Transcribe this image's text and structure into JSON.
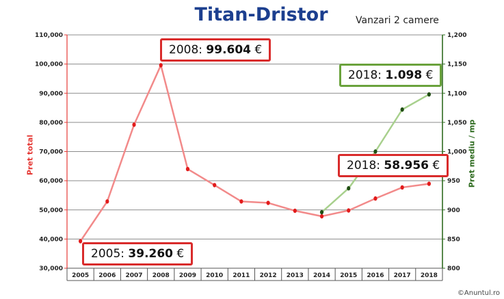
{
  "page": {
    "title": "Titan-Dristor",
    "subtitle": "Vanzari 2 camere",
    "copyright": "©Anuntul.ro"
  },
  "colors": {
    "title": "#1c3f8f",
    "total_line": "#f28a8a",
    "total_marker": "#e21b1b",
    "mp_line": "#a8d08d",
    "mp_marker": "#1f4d12",
    "left_axis": "#e53935",
    "right_axis": "#2e6b1f",
    "grid": "#8c8c8c"
  },
  "callouts": [
    {
      "id": "callout-2008",
      "year": "2008:",
      "value": "99.604",
      "currency": "€",
      "style": "red"
    },
    {
      "id": "callout-2005",
      "year": "2005:",
      "value": "39.260",
      "currency": "€",
      "style": "red"
    },
    {
      "id": "callout-2018-total",
      "year": "2018:",
      "value": "58.956",
      "currency": "€",
      "style": "red"
    },
    {
      "id": "callout-2018-mp",
      "year": "2018:",
      "value": "1.098",
      "currency": "€",
      "style": "green"
    }
  ],
  "chart_data": {
    "type": "line",
    "title": "Titan-Dristor",
    "subtitle": "Vanzari 2 camere",
    "categories": [
      "2005",
      "2006",
      "2007",
      "2008",
      "2009",
      "2010",
      "2011",
      "2012",
      "2013",
      "2014",
      "2015",
      "2016",
      "2017",
      "2018"
    ],
    "y_left": {
      "label": "Pret total",
      "lim": [
        30000,
        110000
      ],
      "ticks": [
        30000,
        40000,
        50000,
        60000,
        70000,
        80000,
        90000,
        100000,
        110000
      ],
      "tick_labels": [
        "30,000",
        "40,000",
        "50,000",
        "60,000",
        "70,000",
        "80,000",
        "90,000",
        "100,000",
        "110,000"
      ]
    },
    "y_right": {
      "label": "Pret mediu / mp",
      "lim": [
        800,
        1200
      ],
      "ticks": [
        800,
        850,
        900,
        950,
        1000,
        1050,
        1100,
        1150,
        1200
      ],
      "tick_labels": [
        "800",
        "850",
        "900",
        "950",
        "1,000",
        "1,050",
        "1,100",
        "1,150",
        "1,200"
      ]
    },
    "grid": true,
    "series": [
      {
        "name": "Pret total",
        "axis": "left",
        "values": [
          39260,
          52900,
          79200,
          99604,
          64000,
          58500,
          52900,
          52400,
          49700,
          47800,
          49800,
          53900,
          57700,
          58956
        ]
      },
      {
        "name": "Pret mediu / mp",
        "axis": "right",
        "values": [
          null,
          null,
          null,
          null,
          null,
          null,
          null,
          null,
          null,
          896,
          937,
          1000,
          1072,
          1098
        ]
      }
    ]
  }
}
